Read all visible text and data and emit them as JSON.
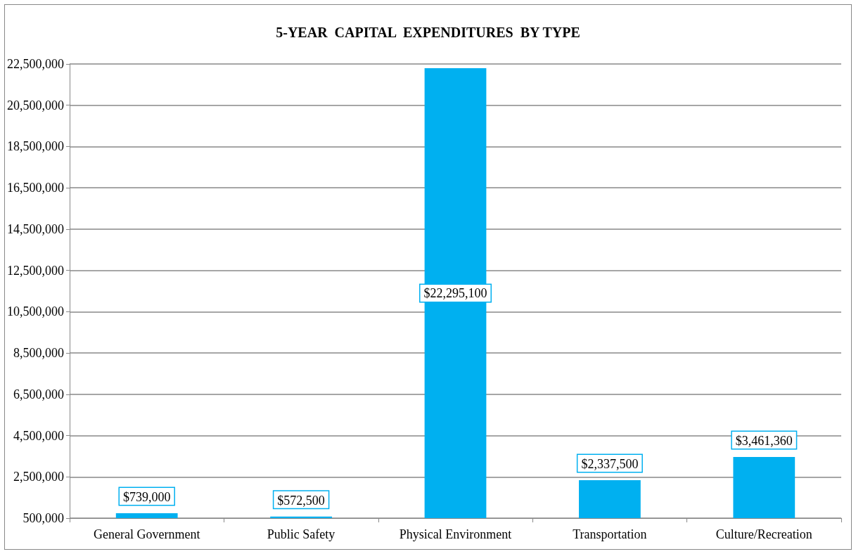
{
  "chart_data": {
    "type": "bar",
    "title": "5-YEAR  CAPITAL  EXPENDITURES  BY TYPE",
    "categories": [
      "General Government",
      "Public Safety",
      "Physical Environment",
      "Transportation",
      "Culture/Recreation"
    ],
    "values": [
      739000,
      572500,
      22295100,
      2337500,
      3461360
    ],
    "value_labels": [
      "$739,000",
      "$572,500",
      "$22,295,100",
      "$2,337,500",
      "$3,461,360"
    ],
    "color": "#00b0f0",
    "ylim": [
      500000,
      22500000
    ],
    "yticks": [
      {
        "value": 500000,
        "label": "500,000"
      },
      {
        "value": 2500000,
        "label": "2,500,000"
      },
      {
        "value": 4500000,
        "label": "4,500,000"
      },
      {
        "value": 6500000,
        "label": "6,500,000"
      },
      {
        "value": 8500000,
        "label": "8,500,000"
      },
      {
        "value": 10500000,
        "label": "10,500,000"
      },
      {
        "value": 12500000,
        "label": "12,500,000"
      },
      {
        "value": 14500000,
        "label": "14,500,000"
      },
      {
        "value": 16500000,
        "label": "16,500,000"
      },
      {
        "value": 18500000,
        "label": "18,500,000"
      },
      {
        "value": 20500000,
        "label": "20,500,000"
      },
      {
        "value": 22500000,
        "label": "22,500,000"
      }
    ],
    "grid": "y"
  }
}
